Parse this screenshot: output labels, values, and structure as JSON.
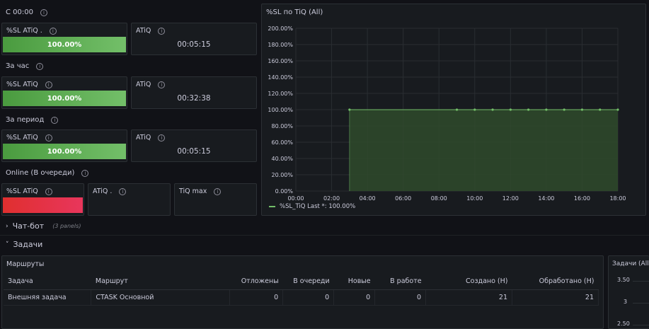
{
  "rows": {
    "since_midnight": "С 00:00",
    "per_hour": "За час",
    "per_period": "За период",
    "online": "Online (В очереди)"
  },
  "stats": {
    "r1_sl_title": "%SL ATiQ .",
    "r1_sl_value": "100.00%",
    "r1_atiq_title": "ATiQ",
    "r1_atiq_value": "00:05:15",
    "r2_sl_title": "%SL ATiQ",
    "r2_sl_value": "100.00%",
    "r2_atiq_title": "ATiQ",
    "r2_atiq_value": "00:32:38",
    "r3_sl_title": "%SL ATiQ",
    "r3_sl_value": "100.00%",
    "r3_atiq_title": "ATiQ",
    "r3_atiq_value": "00:05:15",
    "r4_sl_title": "%SL ATiQ",
    "r4_atiq_title": "ATiQ .",
    "r4_tiq_title": "TiQ max"
  },
  "graph": {
    "title": "%SL по TiQ (All)",
    "legend": "%SL_TiQ  Last *: 100.00%"
  },
  "chart_data": {
    "type": "area",
    "title": "%SL по TiQ (All)",
    "y_ticks": [
      "0.00%",
      "20.00%",
      "40.00%",
      "60.00%",
      "80.00%",
      "100.00%",
      "120.00%",
      "140.00%",
      "160.00%",
      "180.00%",
      "200.00%"
    ],
    "x_ticks": [
      "00:00",
      "02:00",
      "04:00",
      "06:00",
      "08:00",
      "10:00",
      "12:00",
      "14:00",
      "16:00",
      "18:00"
    ],
    "ylim": [
      0,
      200
    ],
    "series": [
      {
        "name": "%SL_TiQ",
        "x_hours": [
          3,
          9,
          10,
          11,
          12,
          13,
          14,
          15,
          16,
          17,
          18
        ],
        "values": [
          100,
          100,
          100,
          100,
          100,
          100,
          100,
          100,
          100,
          100,
          100
        ]
      }
    ],
    "colors": {
      "line": "#73bf69",
      "fill": "#2f4a2b"
    },
    "legend_position": "bottom-left",
    "grid": true
  },
  "sections": {
    "chatbot": "Чат-бот",
    "chatbot_count": "(3 panels)",
    "tasks": "Задачи"
  },
  "routes": {
    "title": "Маршруты",
    "headers": [
      "Задача",
      "Маршрут",
      "Отложены",
      "В очереди",
      "Новые",
      "В работе",
      "Создано (Н)",
      "Обработано (Н)"
    ],
    "rows": [
      [
        "Внешняя задача",
        "CTASK Основной",
        "0",
        "0",
        "0",
        "0",
        "21",
        "21"
      ]
    ]
  },
  "tasks_panel": {
    "title": "Задачи (All",
    "y_ticks": [
      "3.50",
      "3",
      "2.50"
    ]
  }
}
